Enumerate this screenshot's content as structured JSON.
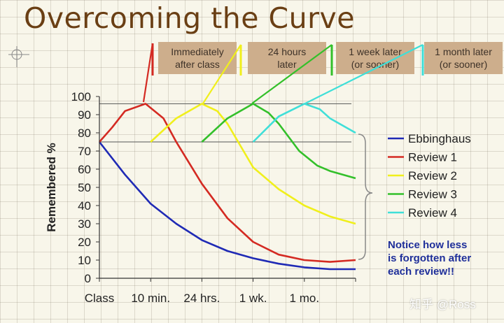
{
  "title": "Overcoming the Curve",
  "callouts": [
    "Immediately\nafter class",
    "24 hours\nlater",
    "1 week later\n(or sooner)",
    "1 month later\n(or sooner)"
  ],
  "note": "Notice how less\nis forgotten after\neach review!!",
  "watermark": "知乎 @Ross",
  "chart_data": {
    "type": "line",
    "title": "Overcoming the Curve",
    "xlabel": "",
    "ylabel": "Remembered %",
    "xlim": [
      0,
      10
    ],
    "ylim": [
      0,
      100
    ],
    "yticks": [
      0,
      10,
      20,
      30,
      40,
      50,
      60,
      70,
      80,
      90,
      100
    ],
    "xticks": [
      {
        "label": "Class",
        "x": 0
      },
      {
        "label": "10 min.",
        "x": 2
      },
      {
        "label": "24 hrs.",
        "x": 4
      },
      {
        "label": "1 wk.",
        "x": 6
      },
      {
        "label": "1 mo.",
        "x": 8
      }
    ],
    "reference_lines": [
      96,
      75
    ],
    "legend_position": "right",
    "series": [
      {
        "name": "Ebbinghaus",
        "color": "#1f2ab5",
        "points": [
          [
            0,
            75
          ],
          [
            1,
            57
          ],
          [
            2,
            41
          ],
          [
            3,
            30
          ],
          [
            4,
            21
          ],
          [
            5,
            15
          ],
          [
            6,
            11
          ],
          [
            7,
            8
          ],
          [
            8,
            6
          ],
          [
            9,
            5
          ],
          [
            10,
            5
          ]
        ]
      },
      {
        "name": "Review 1",
        "color": "#d42a22",
        "points": [
          [
            0,
            75
          ],
          [
            0.5,
            83
          ],
          [
            1,
            92
          ],
          [
            1.8,
            96
          ],
          [
            2.5,
            88
          ],
          [
            3,
            75
          ],
          [
            4,
            52
          ],
          [
            5,
            33
          ],
          [
            6,
            20
          ],
          [
            7,
            13
          ],
          [
            8,
            10
          ],
          [
            9,
            9
          ],
          [
            10,
            10
          ]
        ]
      },
      {
        "name": "Review 2",
        "color": "#f0ef1c",
        "points": [
          [
            2,
            75
          ],
          [
            3,
            88
          ],
          [
            4,
            96
          ],
          [
            4.6,
            92
          ],
          [
            5,
            85
          ],
          [
            6,
            61
          ],
          [
            7,
            49
          ],
          [
            8,
            40
          ],
          [
            9,
            34
          ],
          [
            10,
            30
          ]
        ]
      },
      {
        "name": "Review 3",
        "color": "#33c02a",
        "points": [
          [
            4,
            75
          ],
          [
            5,
            88
          ],
          [
            6,
            96
          ],
          [
            6.6,
            91
          ],
          [
            7,
            85
          ],
          [
            7.8,
            70
          ],
          [
            8.5,
            62
          ],
          [
            9,
            59
          ],
          [
            10,
            55
          ]
        ]
      },
      {
        "name": "Review 4",
        "color": "#3fdfd8",
        "points": [
          [
            6,
            75
          ],
          [
            7,
            89
          ],
          [
            8,
            96
          ],
          [
            8.6,
            93
          ],
          [
            9,
            88
          ],
          [
            10,
            80
          ]
        ]
      }
    ]
  }
}
